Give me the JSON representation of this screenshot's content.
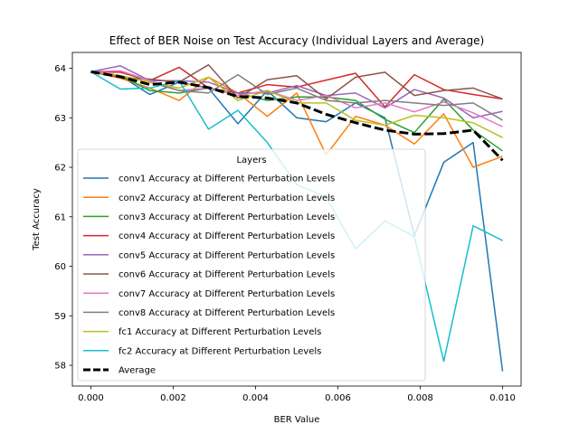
{
  "chart_data": {
    "type": "line",
    "title": "Effect of BER Noise on Test Accuracy (Individual Layers and Average)",
    "xlabel": "BER Value",
    "ylabel": "Test Accuracy",
    "xlim": [
      -0.00045,
      0.01045
    ],
    "ylim": [
      57.58,
      64.32
    ],
    "xticks": [
      0.0,
      0.002,
      0.004,
      0.006,
      0.008,
      0.01
    ],
    "xtick_labels": [
      "0.000",
      "0.002",
      "0.004",
      "0.006",
      "0.008",
      "0.010"
    ],
    "yticks": [
      58,
      59,
      60,
      61,
      62,
      63,
      64
    ],
    "ytick_labels": [
      "58",
      "59",
      "60",
      "61",
      "62",
      "63",
      "64"
    ],
    "grid": false,
    "legend": {
      "title": "Layers",
      "position": "lower-left"
    },
    "x": [
      0.0,
      0.000714,
      0.001429,
      0.002143,
      0.002857,
      0.003571,
      0.004286,
      0.005,
      0.005714,
      0.006429,
      0.007143,
      0.007857,
      0.008571,
      0.009286,
      0.01
    ],
    "series": [
      {
        "name": "conv1 Accuracy at Different Perturbation Levels",
        "color": "#1f77b4",
        "dash": "",
        "width": 1.5,
        "values": [
          63.93,
          63.85,
          63.47,
          63.72,
          63.6,
          62.88,
          63.55,
          63.0,
          62.92,
          63.3,
          63.0,
          60.62,
          62.1,
          62.5,
          57.88
        ]
      },
      {
        "name": "conv2 Accuracy at Different Perturbation Levels",
        "color": "#ff7f0e",
        "dash": "",
        "width": 1.5,
        "values": [
          63.93,
          63.8,
          63.6,
          63.35,
          63.82,
          63.5,
          63.03,
          63.5,
          62.25,
          63.03,
          62.85,
          62.47,
          63.08,
          62.0,
          62.22
        ]
      },
      {
        "name": "conv3 Accuracy at Different Perturbation Levels",
        "color": "#2ca02c",
        "dash": "",
        "width": 1.5,
        "values": [
          63.93,
          63.85,
          63.55,
          63.5,
          63.6,
          63.5,
          63.35,
          63.42,
          63.42,
          63.35,
          62.97,
          62.7,
          63.38,
          62.75,
          62.33
        ]
      },
      {
        "name": "conv4 Accuracy at Different Perturbation Levels",
        "color": "#d62728",
        "dash": "",
        "width": 1.5,
        "values": [
          63.93,
          63.92,
          63.75,
          64.02,
          63.6,
          63.5,
          63.67,
          63.62,
          63.76,
          63.9,
          63.22,
          63.87,
          63.57,
          63.47,
          63.38
        ]
      },
      {
        "name": "conv5 Accuracy at Different Perturbation Levels",
        "color": "#9467bd",
        "dash": "",
        "width": 1.5,
        "values": [
          63.93,
          64.05,
          63.75,
          63.75,
          63.72,
          63.5,
          63.5,
          63.65,
          63.45,
          63.5,
          63.2,
          63.57,
          63.4,
          63.0,
          63.13
        ]
      },
      {
        "name": "conv6 Accuracy at Different Perturbation Levels",
        "color": "#8c564b",
        "dash": "",
        "width": 1.5,
        "values": [
          63.93,
          63.82,
          63.78,
          63.72,
          64.07,
          63.4,
          63.77,
          63.85,
          63.38,
          63.82,
          63.92,
          63.45,
          63.55,
          63.6,
          63.38
        ]
      },
      {
        "name": "conv7 Accuracy at Different Perturbation Levels",
        "color": "#e377c2",
        "dash": "",
        "width": 1.5,
        "values": [
          63.93,
          63.95,
          63.75,
          63.55,
          63.6,
          63.45,
          63.55,
          63.35,
          63.45,
          63.2,
          63.3,
          63.12,
          63.32,
          63.1,
          62.82
        ]
      },
      {
        "name": "conv8 Accuracy at Different Perturbation Levels",
        "color": "#7f7f7f",
        "dash": "",
        "width": 1.5,
        "values": [
          63.93,
          63.85,
          63.72,
          63.55,
          63.5,
          63.87,
          63.47,
          63.6,
          63.35,
          63.3,
          63.35,
          63.3,
          63.25,
          63.3,
          62.95
        ]
      },
      {
        "name": "fc1 Accuracy at Different Perturbation Levels",
        "color": "#bcbd22",
        "dash": "",
        "width": 1.5,
        "values": [
          63.93,
          63.85,
          63.72,
          63.6,
          63.82,
          63.35,
          63.55,
          63.3,
          63.3,
          62.95,
          62.85,
          63.05,
          63.0,
          62.9,
          62.6
        ]
      },
      {
        "name": "fc2 Accuracy at Different Perturbation Levels",
        "color": "#17becf",
        "dash": "",
        "width": 1.5,
        "values": [
          63.93,
          63.58,
          63.6,
          63.75,
          62.77,
          63.15,
          62.5,
          61.65,
          61.4,
          60.35,
          60.92,
          60.6,
          58.08,
          60.82,
          60.52
        ]
      },
      {
        "name": "Average",
        "color": "#000000",
        "dash": "10,4",
        "width": 3,
        "values": [
          63.93,
          63.83,
          63.67,
          63.72,
          63.61,
          63.43,
          63.4,
          63.3,
          63.07,
          62.9,
          62.75,
          62.67,
          62.68,
          62.75,
          62.14
        ]
      }
    ]
  }
}
